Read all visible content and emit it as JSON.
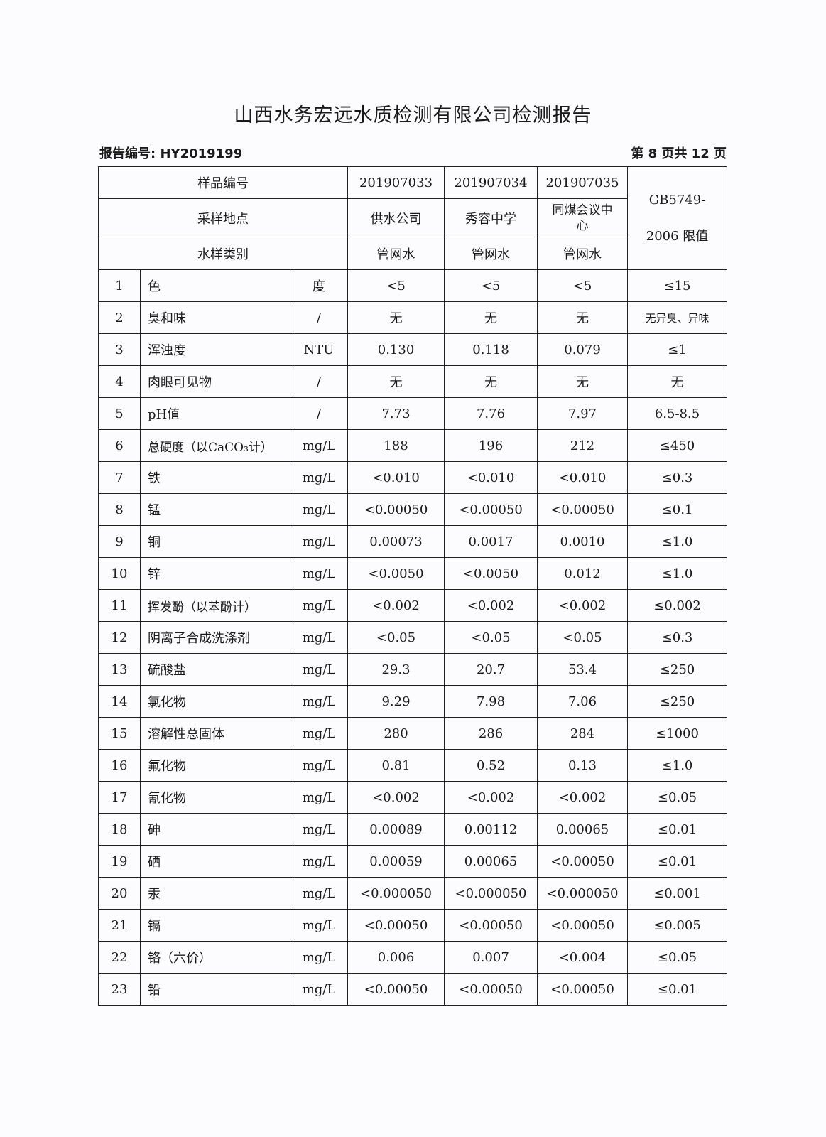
{
  "title": "山西水务宏远水质检测有限公司检测报告",
  "report_no": "报告编号: HY2019199",
  "page_info": "第 8 页共 12 页",
  "header": {
    "sample_no_label": "样品编号",
    "sample_nos": [
      "201907033",
      "201907034",
      "201907035"
    ],
    "location_label": "采样地点",
    "locations": [
      "供水公司",
      "秀容中学",
      "同煤会议中心"
    ],
    "type_label": "水样类别",
    "types": [
      "管网水",
      "管网水",
      "管网水"
    ],
    "limit_label_1": "GB5749-",
    "limit_label_2": "2006 限值"
  },
  "rows": [
    {
      "no": "1",
      "item": "色",
      "unit": "度",
      "v": [
        "<5",
        "<5",
        "<5"
      ],
      "limit": "≤15"
    },
    {
      "no": "2",
      "item": "臭和味",
      "unit": "/",
      "v": [
        "无",
        "无",
        "无"
      ],
      "limit": "无异臭、异味"
    },
    {
      "no": "3",
      "item": "浑浊度",
      "unit": "NTU",
      "v": [
        "0.130",
        "0.118",
        "0.079"
      ],
      "limit": "≤1"
    },
    {
      "no": "4",
      "item": "肉眼可见物",
      "unit": "/",
      "v": [
        "无",
        "无",
        "无"
      ],
      "limit": "无"
    },
    {
      "no": "5",
      "item": "pH值",
      "unit": "/",
      "v": [
        "7.73",
        "7.76",
        "7.97"
      ],
      "limit": "6.5-8.5"
    },
    {
      "no": "6",
      "item": "总硬度（以CaCO₃计）",
      "unit": "mg/L",
      "v": [
        "188",
        "196",
        "212"
      ],
      "limit": "≤450"
    },
    {
      "no": "7",
      "item": "铁",
      "unit": "mg/L",
      "v": [
        "<0.010",
        "<0.010",
        "<0.010"
      ],
      "limit": "≤0.3"
    },
    {
      "no": "8",
      "item": "锰",
      "unit": "mg/L",
      "v": [
        "<0.00050",
        "<0.00050",
        "<0.00050"
      ],
      "limit": "≤0.1"
    },
    {
      "no": "9",
      "item": "铜",
      "unit": "mg/L",
      "v": [
        "0.00073",
        "0.0017",
        "0.0010"
      ],
      "limit": "≤1.0"
    },
    {
      "no": "10",
      "item": "锌",
      "unit": "mg/L",
      "v": [
        "<0.0050",
        "<0.0050",
        "0.012"
      ],
      "limit": "≤1.0"
    },
    {
      "no": "11",
      "item": "挥发酚（以苯酚计）",
      "unit": "mg/L",
      "v": [
        "<0.002",
        "<0.002",
        "<0.002"
      ],
      "limit": "≤0.002"
    },
    {
      "no": "12",
      "item": "阴离子合成洗涤剂",
      "unit": "mg/L",
      "v": [
        "<0.05",
        "<0.05",
        "<0.05"
      ],
      "limit": "≤0.3"
    },
    {
      "no": "13",
      "item": "硫酸盐",
      "unit": "mg/L",
      "v": [
        "29.3",
        "20.7",
        "53.4"
      ],
      "limit": "≤250"
    },
    {
      "no": "14",
      "item": "氯化物",
      "unit": "mg/L",
      "v": [
        "9.29",
        "7.98",
        "7.06"
      ],
      "limit": "≤250"
    },
    {
      "no": "15",
      "item": "溶解性总固体",
      "unit": "mg/L",
      "v": [
        "280",
        "286",
        "284"
      ],
      "limit": "≤1000"
    },
    {
      "no": "16",
      "item": "氟化物",
      "unit": "mg/L",
      "v": [
        "0.81",
        "0.52",
        "0.13"
      ],
      "limit": "≤1.0"
    },
    {
      "no": "17",
      "item": "氰化物",
      "unit": "mg/L",
      "v": [
        "<0.002",
        "<0.002",
        "<0.002"
      ],
      "limit": "≤0.05"
    },
    {
      "no": "18",
      "item": "砷",
      "unit": "mg/L",
      "v": [
        "0.00089",
        "0.00112",
        "0.00065"
      ],
      "limit": "≤0.01"
    },
    {
      "no": "19",
      "item": "硒",
      "unit": "mg/L",
      "v": [
        "0.00059",
        "0.00065",
        "<0.00050"
      ],
      "limit": "≤0.01"
    },
    {
      "no": "20",
      "item": "汞",
      "unit": "mg/L",
      "v": [
        "<0.000050",
        "<0.000050",
        "<0.000050"
      ],
      "limit": "≤0.001"
    },
    {
      "no": "21",
      "item": "镉",
      "unit": "mg/L",
      "v": [
        "<0.00050",
        "<0.00050",
        "<0.00050"
      ],
      "limit": "≤0.005"
    },
    {
      "no": "22",
      "item": "铬（六价）",
      "unit": "mg/L",
      "v": [
        "0.006",
        "0.007",
        "<0.004"
      ],
      "limit": "≤0.05"
    },
    {
      "no": "23",
      "item": "铅",
      "unit": "mg/L",
      "v": [
        "<0.00050",
        "<0.00050",
        "<0.00050"
      ],
      "limit": "≤0.01"
    }
  ]
}
